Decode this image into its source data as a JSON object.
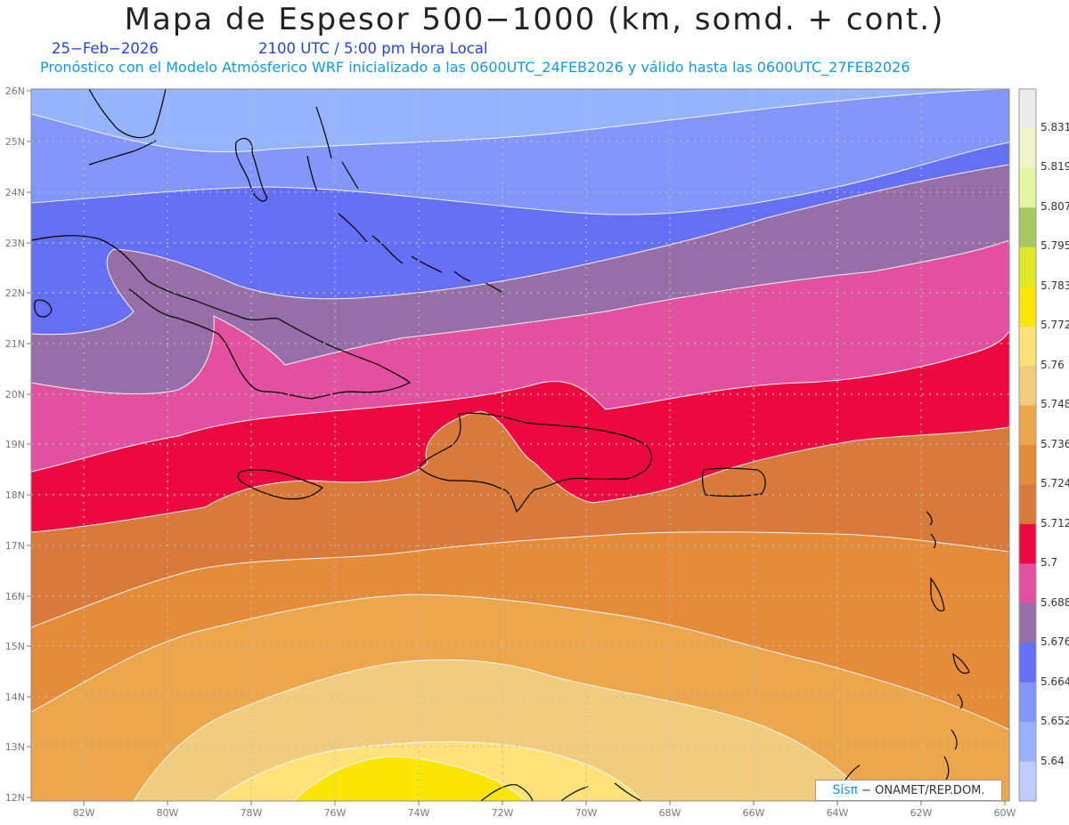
{
  "header": {
    "title": "Mapa de Espesor 500−1000 (km, somd. + cont.)",
    "date": "25−Feb−2026",
    "valid_time": "2100 UTC / 5:00 pm Hora Local",
    "run_info": "Pronóstico con el Modelo Atmósferico WRF inicializado a las 0600UTC_24FEB2026 y válido hasta las  0600UTC_27FEB2026"
  },
  "map": {
    "lat_labels": [
      "26N",
      "25N",
      "24N",
      "23N",
      "22N",
      "21N",
      "20N",
      "19N",
      "18N",
      "17N",
      "16N",
      "15N",
      "14N",
      "13N",
      "12N"
    ],
    "lon_labels": [
      "82W",
      "80W",
      "78W",
      "76W",
      "74W",
      "72W",
      "70W",
      "68W",
      "66W",
      "64W",
      "62W",
      "60W"
    ]
  },
  "colorbar": {
    "labels": [
      "5.831",
      "5.819",
      "5.807",
      "5.795",
      "5.783",
      "5.772",
      "5.76",
      "5.748",
      "5.736",
      "5.724",
      "5.712",
      "5.7",
      "5.688",
      "5.676",
      "5.664",
      "5.652",
      "5.64"
    ],
    "colors": [
      "#ececec",
      "#f0f4c8",
      "#e4f4a0",
      "#a8c860",
      "#e0e828",
      "#fae600",
      "#fde27a",
      "#f2cc7e",
      "#eca64c",
      "#e48c3a",
      "#d87a3a",
      "#ee0840",
      "#e250a0",
      "#986ea8",
      "#6670f6",
      "#8296fc",
      "#98b2ff",
      "#c0ccff"
    ]
  },
  "credit": {
    "brand": "Sisπ",
    "text": "− ONAMET/REP.DOM."
  },
  "colors": {
    "band_1": "#96b4fe",
    "band_2": "#8296fc",
    "band_3": "#6670f6",
    "band_4": "#986ea8",
    "band_5": "#e250a0",
    "band_6": "#ee0840",
    "band_7": "#d87a3a",
    "band_8": "#e48c3a",
    "band_9": "#eca64c",
    "band_10": "#f2cc7e",
    "band_11": "#fde27a",
    "band_12": "#fae600"
  }
}
